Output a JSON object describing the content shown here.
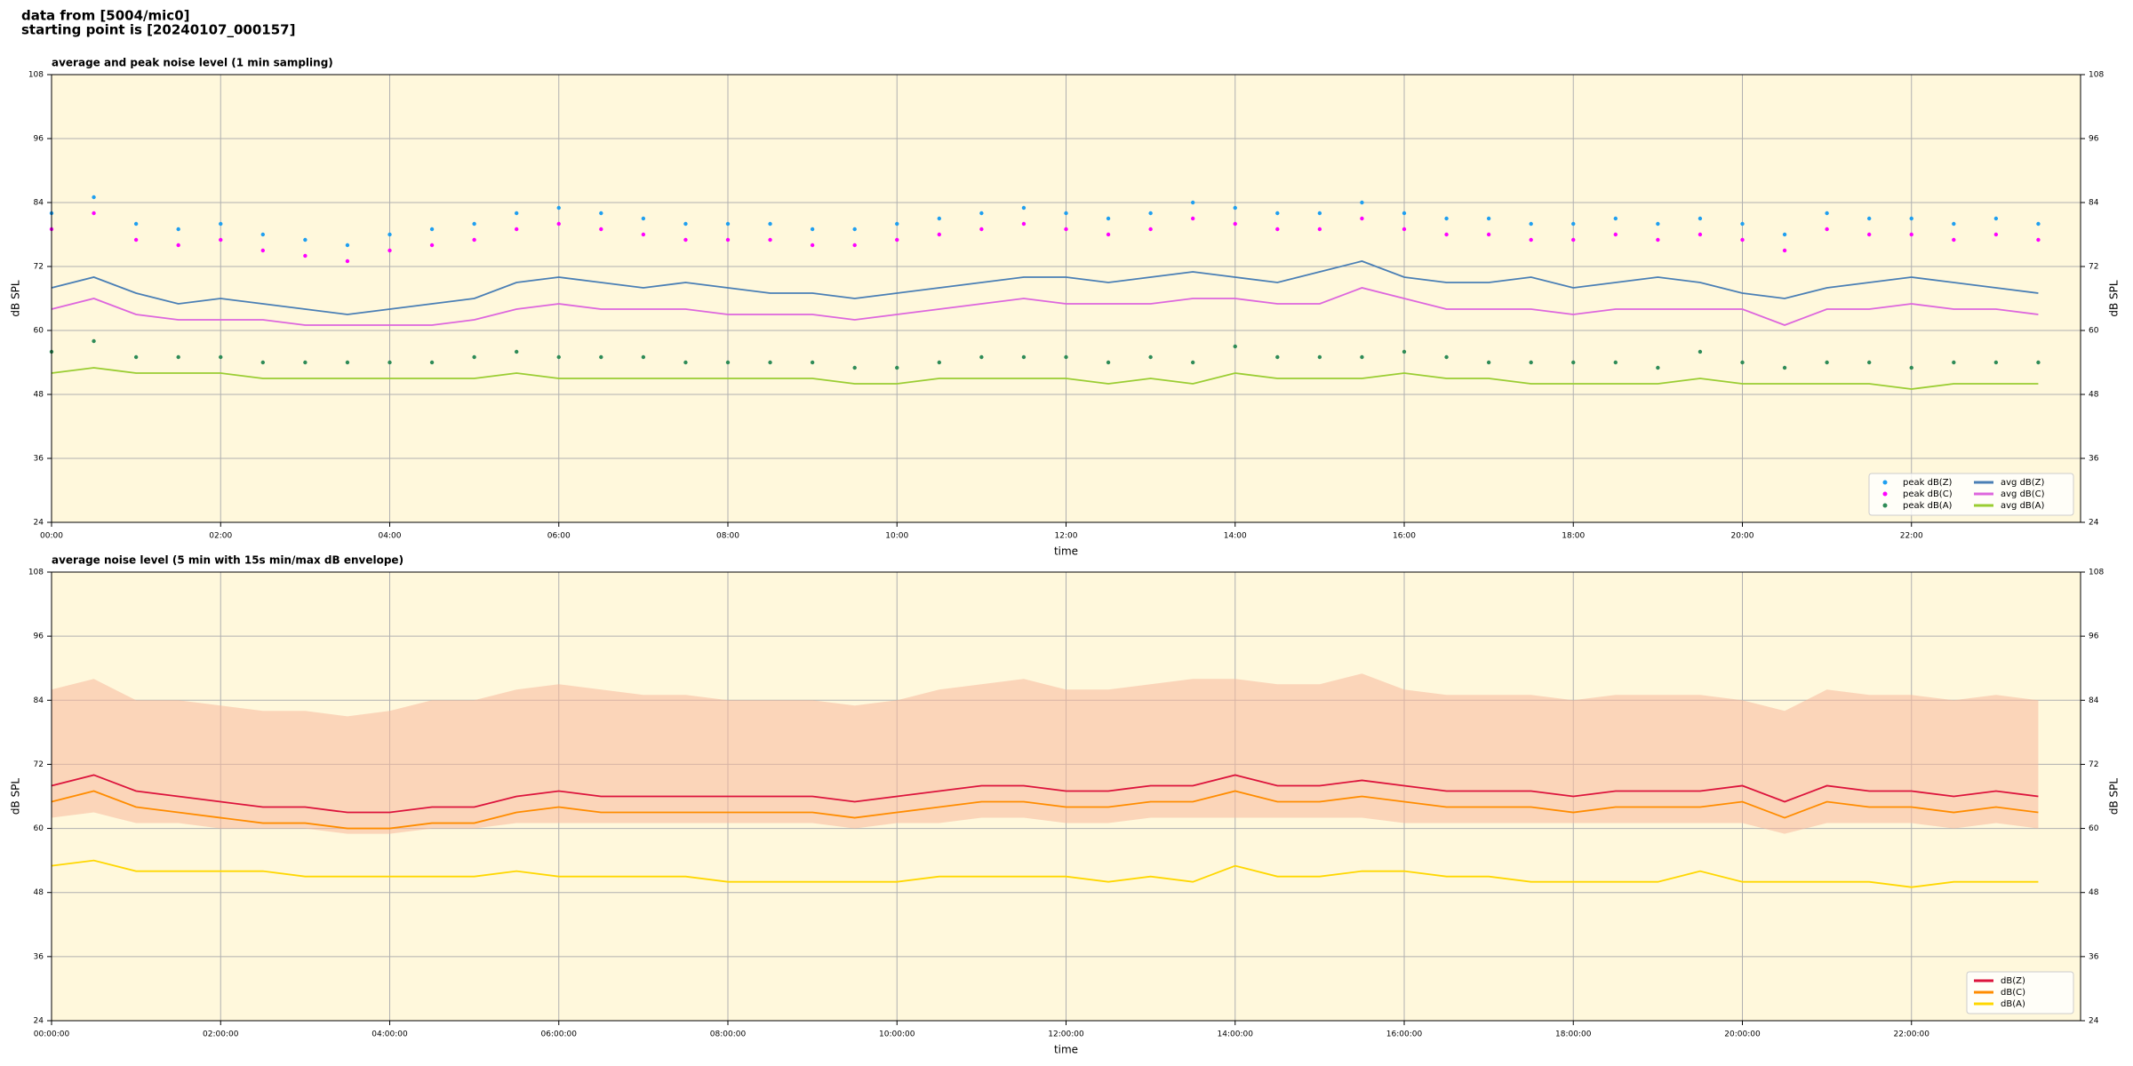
{
  "header": {
    "line1": "data from [5004/mic0]",
    "line2": "starting point is [20240107_000157]"
  },
  "chart_data": [
    {
      "type": "line",
      "title": "average and peak noise level (1 min sampling)",
      "xlabel": "time",
      "ylabel": "dB SPL",
      "legend": "lower right",
      "legend_columns": 2,
      "grid": true,
      "background": "#fff8dc",
      "x": [
        0,
        0.5,
        1,
        1.5,
        2,
        2.5,
        3,
        3.5,
        4,
        4.5,
        5,
        5.5,
        6,
        6.5,
        7,
        7.5,
        8,
        8.5,
        9,
        9.5,
        10,
        10.5,
        11,
        11.5,
        12,
        12.5,
        13,
        13.5,
        14,
        14.5,
        15,
        15.5,
        16,
        16.5,
        17,
        17.5,
        18,
        18.5,
        19,
        19.5,
        20,
        20.5,
        21,
        21.5,
        22,
        22.5,
        23,
        23.5
      ],
      "xlim": [
        0,
        24
      ],
      "xticks": [
        {
          "value": 0,
          "label": "00:00"
        },
        {
          "value": 2,
          "label": "02:00"
        },
        {
          "value": 4,
          "label": "04:00"
        },
        {
          "value": 6,
          "label": "06:00"
        },
        {
          "value": 8,
          "label": "08:00"
        },
        {
          "value": 10,
          "label": "10:00"
        },
        {
          "value": 12,
          "label": "12:00"
        },
        {
          "value": 14,
          "label": "14:00"
        },
        {
          "value": 16,
          "label": "16:00"
        },
        {
          "value": 18,
          "label": "18:00"
        },
        {
          "value": 20,
          "label": "20:00"
        },
        {
          "value": 22,
          "label": "22:00"
        }
      ],
      "ylim": [
        24,
        108
      ],
      "yticks": [
        24,
        36,
        48,
        60,
        72,
        84,
        96,
        108
      ],
      "series": [
        {
          "name": "peak dB(Z)",
          "color": "#1f9ff0",
          "style": "markers",
          "values": [
            82,
            85,
            80,
            79,
            80,
            78,
            77,
            76,
            78,
            79,
            80,
            82,
            83,
            82,
            81,
            80,
            80,
            80,
            79,
            79,
            80,
            81,
            82,
            83,
            82,
            81,
            82,
            84,
            83,
            82,
            82,
            84,
            82,
            81,
            81,
            80,
            80,
            81,
            80,
            81,
            80,
            78,
            82,
            81,
            81,
            80,
            81,
            80
          ]
        },
        {
          "name": "peak dB(C)",
          "color": "#ff00ff",
          "style": "markers",
          "values": [
            79,
            82,
            77,
            76,
            77,
            75,
            74,
            73,
            75,
            76,
            77,
            79,
            80,
            79,
            78,
            77,
            77,
            77,
            76,
            76,
            77,
            78,
            79,
            80,
            79,
            78,
            79,
            81,
            80,
            79,
            79,
            81,
            79,
            78,
            78,
            77,
            77,
            78,
            77,
            78,
            77,
            75,
            79,
            78,
            78,
            77,
            78,
            77
          ]
        },
        {
          "name": "peak dB(A)",
          "color": "#2e8b57",
          "style": "markers",
          "values": [
            56,
            58,
            55,
            55,
            55,
            54,
            54,
            54,
            54,
            54,
            55,
            56,
            55,
            55,
            55,
            54,
            54,
            54,
            54,
            53,
            53,
            54,
            55,
            55,
            55,
            54,
            55,
            54,
            57,
            55,
            55,
            55,
            56,
            55,
            54,
            54,
            54,
            54,
            53,
            56,
            54,
            53,
            54,
            54,
            53,
            54,
            54,
            54
          ]
        },
        {
          "name": "avg dB(Z)",
          "color": "#4a7fb5",
          "style": "line",
          "values": [
            68,
            70,
            67,
            65,
            66,
            65,
            64,
            63,
            64,
            65,
            66,
            69,
            70,
            69,
            68,
            69,
            68,
            67,
            67,
            66,
            67,
            68,
            69,
            70,
            70,
            69,
            70,
            71,
            70,
            69,
            71,
            73,
            70,
            69,
            69,
            70,
            68,
            69,
            70,
            69,
            67,
            66,
            68,
            69,
            70,
            69,
            68,
            67
          ]
        },
        {
          "name": "avg dB(C)",
          "color": "#dd66dd",
          "style": "line",
          "values": [
            64,
            66,
            63,
            62,
            62,
            62,
            61,
            61,
            61,
            61,
            62,
            64,
            65,
            64,
            64,
            64,
            63,
            63,
            63,
            62,
            63,
            64,
            65,
            66,
            65,
            65,
            65,
            66,
            66,
            65,
            65,
            68,
            66,
            64,
            64,
            64,
            63,
            64,
            64,
            64,
            64,
            61,
            64,
            64,
            65,
            64,
            64,
            63
          ]
        },
        {
          "name": "avg dB(A)",
          "color": "#9acd32",
          "style": "line",
          "values": [
            52,
            53,
            52,
            52,
            52,
            51,
            51,
            51,
            51,
            51,
            51,
            52,
            51,
            51,
            51,
            51,
            51,
            51,
            51,
            50,
            50,
            51,
            51,
            51,
            51,
            50,
            51,
            50,
            52,
            51,
            51,
            51,
            52,
            51,
            51,
            50,
            50,
            50,
            50,
            51,
            50,
            50,
            50,
            50,
            49,
            50,
            50,
            50
          ]
        }
      ]
    },
    {
      "type": "line",
      "title": "average noise level (5 min with 15s min/max dB envelope)",
      "xlabel": "time",
      "ylabel": "dB SPL",
      "legend": "lower right",
      "legend_columns": 1,
      "grid": true,
      "background": "#fff8dc",
      "x": [
        0,
        0.5,
        1,
        1.5,
        2,
        2.5,
        3,
        3.5,
        4,
        4.5,
        5,
        5.5,
        6,
        6.5,
        7,
        7.5,
        8,
        8.5,
        9,
        9.5,
        10,
        10.5,
        11,
        11.5,
        12,
        12.5,
        13,
        13.5,
        14,
        14.5,
        15,
        15.5,
        16,
        16.5,
        17,
        17.5,
        18,
        18.5,
        19,
        19.5,
        20,
        20.5,
        21,
        21.5,
        22,
        22.5,
        23,
        23.5
      ],
      "xlim": [
        0,
        24
      ],
      "xticks": [
        {
          "value": 0,
          "label": "00:00:00"
        },
        {
          "value": 2,
          "label": "02:00:00"
        },
        {
          "value": 4,
          "label": "04:00:00"
        },
        {
          "value": 6,
          "label": "06:00:00"
        },
        {
          "value": 8,
          "label": "08:00:00"
        },
        {
          "value": 10,
          "label": "10:00:00"
        },
        {
          "value": 12,
          "label": "12:00:00"
        },
        {
          "value": 14,
          "label": "14:00:00"
        },
        {
          "value": 16,
          "label": "16:00:00"
        },
        {
          "value": 18,
          "label": "18:00:00"
        },
        {
          "value": 20,
          "label": "20:00:00"
        },
        {
          "value": 22,
          "label": "22:00:00"
        }
      ],
      "ylim": [
        24,
        108
      ],
      "yticks": [
        24,
        36,
        48,
        60,
        72,
        84,
        96,
        108
      ],
      "envelope": {
        "color": "#f8b89c",
        "lower": [
          62,
          63,
          61,
          61,
          60,
          60,
          60,
          59,
          59,
          60,
          60,
          61,
          61,
          61,
          61,
          61,
          61,
          61,
          61,
          60,
          61,
          61,
          62,
          62,
          61,
          61,
          62,
          62,
          62,
          62,
          62,
          62,
          61,
          61,
          61,
          61,
          61,
          61,
          61,
          61,
          61,
          59,
          61,
          61,
          61,
          60,
          61,
          60
        ],
        "upper": [
          86,
          88,
          84,
          84,
          83,
          82,
          82,
          81,
          82,
          84,
          84,
          86,
          87,
          86,
          85,
          85,
          84,
          84,
          84,
          83,
          84,
          86,
          87,
          88,
          86,
          86,
          87,
          88,
          88,
          87,
          87,
          89,
          86,
          85,
          85,
          85,
          84,
          85,
          85,
          85,
          84,
          82,
          86,
          85,
          85,
          84,
          85,
          84
        ]
      },
      "series": [
        {
          "name": "dB(Z)",
          "color": "#dc143c",
          "style": "line",
          "values": [
            68,
            70,
            67,
            66,
            65,
            64,
            64,
            63,
            63,
            64,
            64,
            66,
            67,
            66,
            66,
            66,
            66,
            66,
            66,
            65,
            66,
            67,
            68,
            68,
            67,
            67,
            68,
            68,
            70,
            68,
            68,
            69,
            68,
            67,
            67,
            67,
            66,
            67,
            67,
            67,
            68,
            65,
            68,
            67,
            67,
            66,
            67,
            66
          ]
        },
        {
          "name": "dB(C)",
          "color": "#ff8c00",
          "style": "line",
          "values": [
            65,
            67,
            64,
            63,
            62,
            61,
            61,
            60,
            60,
            61,
            61,
            63,
            64,
            63,
            63,
            63,
            63,
            63,
            63,
            62,
            63,
            64,
            65,
            65,
            64,
            64,
            65,
            65,
            67,
            65,
            65,
            66,
            65,
            64,
            64,
            64,
            63,
            64,
            64,
            64,
            65,
            62,
            65,
            64,
            64,
            63,
            64,
            63
          ]
        },
        {
          "name": "dB(A)",
          "color": "#ffd700",
          "style": "line",
          "values": [
            53,
            54,
            52,
            52,
            52,
            52,
            51,
            51,
            51,
            51,
            51,
            52,
            51,
            51,
            51,
            51,
            50,
            50,
            50,
            50,
            50,
            51,
            51,
            51,
            51,
            50,
            51,
            50,
            53,
            51,
            51,
            52,
            52,
            51,
            51,
            50,
            50,
            50,
            50,
            52,
            50,
            50,
            50,
            50,
            49,
            50,
            50,
            50
          ]
        }
      ]
    }
  ]
}
